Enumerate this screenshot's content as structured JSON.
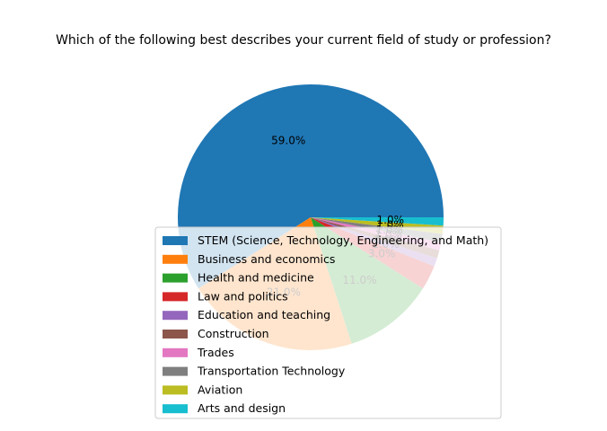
{
  "chart_data": {
    "type": "pie",
    "title": "Which of the following best describes your current field of study or profession?",
    "start_angle_deg": 0,
    "direction": "counterclockwise",
    "slices": [
      {
        "label": "STEM (Science, Technology, Engineering, and Math)",
        "value": 59.0,
        "pct_label": "59.0%",
        "color": "#1f77b4"
      },
      {
        "label": "Business and economics",
        "value": 21.0,
        "pct_label": "21.0%",
        "color": "#ff7f0e"
      },
      {
        "label": "Health and medicine",
        "value": 11.0,
        "pct_label": "11.0%",
        "color": "#2ca02c"
      },
      {
        "label": "Law and politics",
        "value": 3.0,
        "pct_label": "3.0%",
        "color": "#d62728"
      },
      {
        "label": "Education and teaching",
        "value": 1.0,
        "pct_label": "1.0%",
        "color": "#9467bd"
      },
      {
        "label": "Construction",
        "value": 1.0,
        "pct_label": "1.0%",
        "color": "#8c564b"
      },
      {
        "label": "Trades",
        "value": 1.0,
        "pct_label": "1.0%",
        "color": "#e377c2"
      },
      {
        "label": "Transportation Technology",
        "value": 1.0,
        "pct_label": "1.0%",
        "color": "#7f7f7f"
      },
      {
        "label": "Aviation",
        "value": 1.0,
        "pct_label": "1.0%",
        "color": "#bcbd22"
      },
      {
        "label": "Arts and design",
        "value": 1.0,
        "pct_label": "1.0%",
        "color": "#17becf"
      }
    ],
    "legend_placement": "lower-center"
  }
}
